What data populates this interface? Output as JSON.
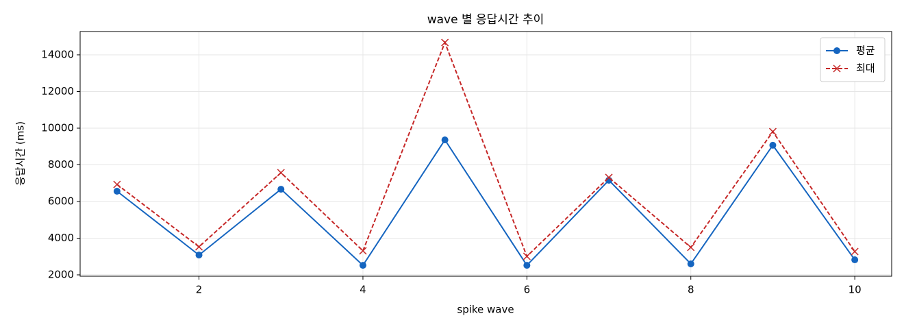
{
  "chart_data": {
    "type": "line",
    "title": "wave 별 응답시간 추이",
    "xlabel": "spike wave",
    "ylabel": "응답시간 (ms)",
    "x": [
      1,
      2,
      3,
      4,
      5,
      6,
      7,
      8,
      9,
      10
    ],
    "series": [
      {
        "name": "평균",
        "color": "#1565c0",
        "marker": "o",
        "linestyle": "solid",
        "values": [
          6560,
          3080,
          6670,
          2520,
          9360,
          2520,
          7160,
          2600,
          9070,
          2820
        ]
      },
      {
        "name": "최대",
        "color": "#c62828",
        "marker": "x",
        "linestyle": "dashed",
        "values": [
          6930,
          3530,
          7570,
          3310,
          14670,
          3010,
          7310,
          3500,
          9810,
          3270
        ]
      }
    ],
    "xlim": [
      0.55,
      10.45
    ],
    "xticks": [
      2,
      4,
      6,
      8,
      10
    ],
    "ylim": [
      1925,
      15270
    ],
    "yticks": [
      2000,
      4000,
      6000,
      8000,
      10000,
      12000,
      14000
    ],
    "grid": true,
    "legend": "upper right"
  }
}
